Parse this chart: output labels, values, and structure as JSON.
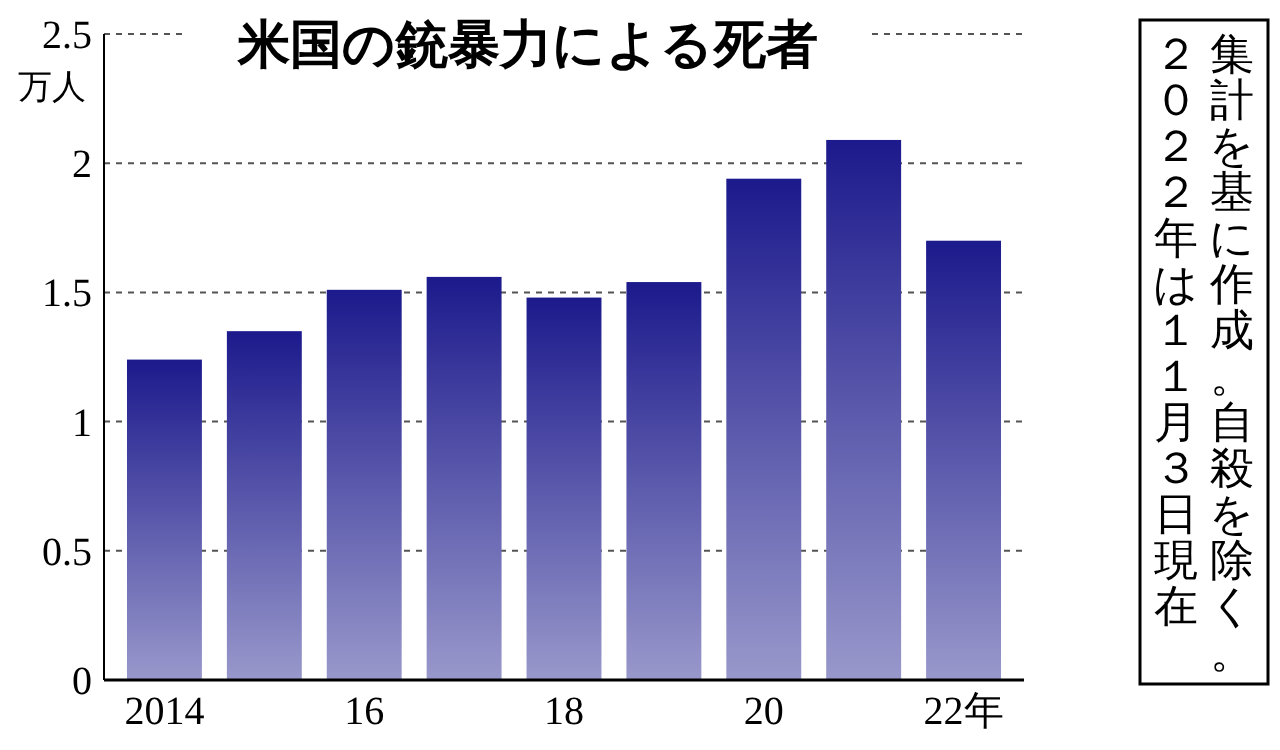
{
  "chart_data": {
    "type": "bar",
    "title": "米国の銃暴力による死者",
    "ylabel": "万人",
    "categories": [
      "2014",
      null,
      "16",
      null,
      "18",
      null,
      "20",
      null,
      "22年"
    ],
    "values": [
      1.24,
      1.35,
      1.51,
      1.56,
      1.48,
      1.54,
      1.94,
      2.09,
      1.7
    ],
    "color": "#1c1a8c",
    "ylim": [
      0,
      2.5
    ],
    "yticks": [
      0,
      0.5,
      1,
      1.5,
      2,
      2.5
    ],
    "grid": "y",
    "annotations": [
      "集計を基に作成。自殺を除く。",
      "２０２２年は１１月３日現在"
    ]
  }
}
